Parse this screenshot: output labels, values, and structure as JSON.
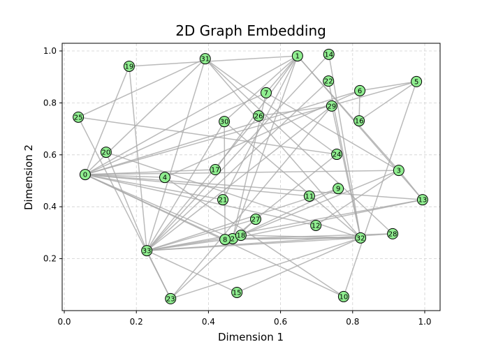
{
  "chart_data": {
    "type": "scatter",
    "subtype": "network-graph",
    "title": "2D Graph Embedding",
    "xlabel": "Dimension 1",
    "ylabel": "Dimension 2",
    "xlim": [
      -0.006,
      1.043
    ],
    "ylim": [
      0.0,
      1.032
    ],
    "xticks": [
      0.0,
      0.2,
      0.4,
      0.6,
      0.8,
      1.0
    ],
    "xtick_labels": [
      "0.0",
      "0.2",
      "0.4",
      "0.6",
      "0.8",
      "1.0"
    ],
    "yticks": [
      0.2,
      0.4,
      0.6,
      0.8,
      1.0
    ],
    "ytick_labels": [
      "0.2",
      "0.4",
      "0.6",
      "0.8",
      "1.0"
    ],
    "grid": true,
    "legend": null,
    "node_color": "#90ee90",
    "node_edge_color": "#000000",
    "edge_color": "#a9a9a9",
    "nodes": [
      {
        "id": 0,
        "x": 0.058,
        "y": 0.524
      },
      {
        "id": 1,
        "x": 0.647,
        "y": 0.981
      },
      {
        "id": 2,
        "x": 0.467,
        "y": 0.277
      },
      {
        "id": 3,
        "x": 0.928,
        "y": 0.54
      },
      {
        "id": 4,
        "x": 0.279,
        "y": 0.513
      },
      {
        "id": 5,
        "x": 0.977,
        "y": 0.882
      },
      {
        "id": 6,
        "x": 0.82,
        "y": 0.847
      },
      {
        "id": 7,
        "x": 0.56,
        "y": 0.839
      },
      {
        "id": 8,
        "x": 0.446,
        "y": 0.274
      },
      {
        "id": 9,
        "x": 0.76,
        "y": 0.47
      },
      {
        "id": 10,
        "x": 0.775,
        "y": 0.054
      },
      {
        "id": 11,
        "x": 0.68,
        "y": 0.441
      },
      {
        "id": 12,
        "x": 0.698,
        "y": 0.328
      },
      {
        "id": 13,
        "x": 0.994,
        "y": 0.427
      },
      {
        "id": 14,
        "x": 0.734,
        "y": 0.987
      },
      {
        "id": 15,
        "x": 0.479,
        "y": 0.07
      },
      {
        "id": 16,
        "x": 0.818,
        "y": 0.731
      },
      {
        "id": 17,
        "x": 0.419,
        "y": 0.543
      },
      {
        "id": 18,
        "x": 0.49,
        "y": 0.29
      },
      {
        "id": 19,
        "x": 0.18,
        "y": 0.941
      },
      {
        "id": 20,
        "x": 0.116,
        "y": 0.61
      },
      {
        "id": 21,
        "x": 0.44,
        "y": 0.427
      },
      {
        "id": 22,
        "x": 0.733,
        "y": 0.884
      },
      {
        "id": 23,
        "x": 0.295,
        "y": 0.046
      },
      {
        "id": 24,
        "x": 0.756,
        "y": 0.602
      },
      {
        "id": 25,
        "x": 0.039,
        "y": 0.745
      },
      {
        "id": 26,
        "x": 0.539,
        "y": 0.75
      },
      {
        "id": 27,
        "x": 0.531,
        "y": 0.352
      },
      {
        "id": 28,
        "x": 0.911,
        "y": 0.296
      },
      {
        "id": 29,
        "x": 0.742,
        "y": 0.788
      },
      {
        "id": 30,
        "x": 0.444,
        "y": 0.728
      },
      {
        "id": 31,
        "x": 0.391,
        "y": 0.97
      },
      {
        "id": 32,
        "x": 0.822,
        "y": 0.28
      },
      {
        "id": 33,
        "x": 0.229,
        "y": 0.231
      }
    ],
    "edges": [
      [
        0,
        1
      ],
      [
        0,
        2
      ],
      [
        0,
        3
      ],
      [
        0,
        4
      ],
      [
        0,
        5
      ],
      [
        0,
        6
      ],
      [
        0,
        7
      ],
      [
        0,
        8
      ],
      [
        0,
        10
      ],
      [
        0,
        11
      ],
      [
        0,
        12
      ],
      [
        0,
        13
      ],
      [
        0,
        17
      ],
      [
        0,
        19
      ],
      [
        0,
        21
      ],
      [
        0,
        31
      ],
      [
        1,
        2
      ],
      [
        1,
        3
      ],
      [
        1,
        7
      ],
      [
        1,
        13
      ],
      [
        1,
        17
      ],
      [
        1,
        19
      ],
      [
        1,
        21
      ],
      [
        1,
        30
      ],
      [
        2,
        3
      ],
      [
        2,
        7
      ],
      [
        2,
        8
      ],
      [
        2,
        9
      ],
      [
        2,
        13
      ],
      [
        2,
        27
      ],
      [
        2,
        28
      ],
      [
        2,
        32
      ],
      [
        3,
        7
      ],
      [
        3,
        12
      ],
      [
        3,
        13
      ],
      [
        4,
        6
      ],
      [
        4,
        10
      ],
      [
        5,
        6
      ],
      [
        5,
        10
      ],
      [
        5,
        16
      ],
      [
        6,
        16
      ],
      [
        8,
        30
      ],
      [
        8,
        32
      ],
      [
        8,
        33
      ],
      [
        9,
        33
      ],
      [
        13,
        33
      ],
      [
        14,
        32
      ],
      [
        14,
        33
      ],
      [
        15,
        32
      ],
      [
        15,
        33
      ],
      [
        18,
        32
      ],
      [
        18,
        33
      ],
      [
        19,
        33
      ],
      [
        20,
        32
      ],
      [
        20,
        33
      ],
      [
        22,
        32
      ],
      [
        22,
        33
      ],
      [
        23,
        25
      ],
      [
        23,
        27
      ],
      [
        23,
        29
      ],
      [
        23,
        32
      ],
      [
        23,
        33
      ],
      [
        24,
        25
      ],
      [
        24,
        27
      ],
      [
        24,
        31
      ],
      [
        25,
        31
      ],
      [
        26,
        29
      ],
      [
        26,
        33
      ],
      [
        27,
        33
      ],
      [
        28,
        31
      ],
      [
        28,
        33
      ],
      [
        29,
        32
      ],
      [
        29,
        33
      ],
      [
        30,
        32
      ],
      [
        30,
        33
      ],
      [
        31,
        32
      ],
      [
        31,
        33
      ],
      [
        32,
        33
      ]
    ]
  }
}
